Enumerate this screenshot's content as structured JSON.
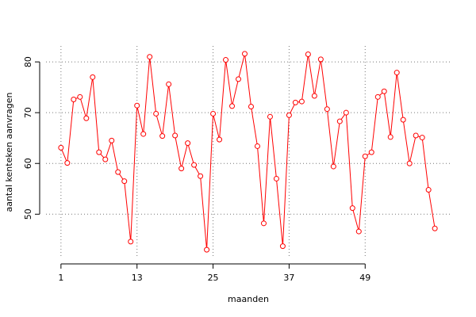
{
  "chart_data": {
    "type": "line",
    "x_label": "maanden",
    "y_label": "aantal kenteken aanvragen",
    "x": [
      1,
      2,
      3,
      4,
      5,
      6,
      7,
      8,
      9,
      10,
      11,
      12,
      13,
      14,
      15,
      16,
      17,
      18,
      19,
      20,
      21,
      22,
      23,
      24,
      25,
      26,
      27,
      28,
      29,
      30,
      31,
      32,
      33,
      34,
      35,
      36,
      37,
      38,
      39,
      40,
      41,
      42,
      43,
      44,
      45,
      46,
      47,
      48,
      49,
      50,
      51,
      52,
      53,
      54,
      55,
      56,
      57,
      58,
      59,
      60
    ],
    "series": [
      {
        "color": "#ff0000",
        "values": [
          63.1,
          60.1,
          72.6,
          73.1,
          68.9,
          77.0,
          62.2,
          60.8,
          64.5,
          58.3,
          56.5,
          44.6,
          71.4,
          65.8,
          81.0,
          69.8,
          65.4,
          75.6,
          65.5,
          59.0,
          64.0,
          59.7,
          57.5,
          43.0,
          69.8,
          64.7,
          80.4,
          71.3,
          76.6,
          81.6,
          71.2,
          63.4,
          48.2,
          69.2,
          57.0,
          43.7,
          69.5,
          72.0,
          72.2,
          81.5,
          73.3,
          80.5,
          70.7,
          59.4,
          68.3,
          70.0,
          51.2,
          46.6,
          61.4,
          62.2,
          73.1,
          74.2,
          65.2,
          77.9,
          68.6,
          60.0,
          65.5,
          65.1,
          54.8,
          47.2
        ]
      }
    ],
    "xlim": [
      -1.36,
      62.36
    ],
    "xticks": [
      1,
      13,
      25,
      37,
      49
    ],
    "ylim": [
      41.46,
      83.14
    ],
    "yticks": [
      50,
      60,
      70,
      80
    ],
    "grid": true
  }
}
